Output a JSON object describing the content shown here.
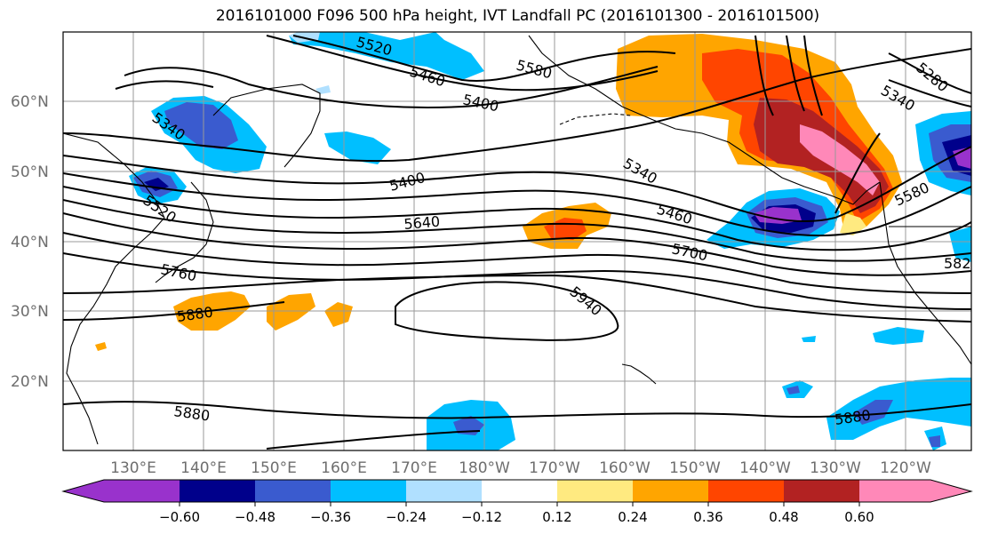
{
  "title": "2016101000 F096 500 hPa height, IVT Landfall PC (2016101300 - 2016101500)",
  "lat_labels": [
    "60°N",
    "50°N",
    "40°N",
    "30°N",
    "20°N"
  ],
  "lon_labels": [
    "130°E",
    "140°E",
    "150°E",
    "160°E",
    "170°E",
    "180°W",
    "170°W",
    "160°W",
    "150°W",
    "140°W",
    "130°W",
    "120°W"
  ],
  "contour_labels": {
    "c5520_top": "5520",
    "c5580_top": "5580",
    "c5460_top": "5460",
    "c5400_top": "5400",
    "c5280_right": "5280",
    "c5340_right": "5340",
    "c5340_left": "5340",
    "c5520_left": "5520",
    "c5400_mid": "5400",
    "c5340_mid": "5340",
    "c5640": "5640",
    "c5460_mid": "5460",
    "c5700": "5700",
    "c5580_right": "5580",
    "c5760": "5760",
    "c5880_left": "5880",
    "c5940": "5940",
    "c5820_right": "582",
    "c5880_bottom": "5880",
    "c5880_bottom_right": "5880"
  },
  "colorbar": {
    "ticks": [
      "−0.60",
      "−0.48",
      "−0.36",
      "−0.24",
      "−0.12",
      "0.12",
      "0.24",
      "0.36",
      "0.48",
      "0.60"
    ],
    "colors": [
      "#9932cc",
      "#00008b",
      "#3a5bcf",
      "#00bfff",
      "#b0e0ff",
      "#ffffff",
      "#ffea80",
      "#ffa500",
      "#ff4500",
      "#b22222",
      "#ff88b8"
    ]
  },
  "fill_colors": {
    "purple": "#9932cc",
    "navy": "#00008b",
    "blue": "#3a5bcf",
    "sky": "#00bfff",
    "pale": "#b0e0ff",
    "yellow": "#ffea80",
    "orange": "#ffa500",
    "red": "#ff4500",
    "darkred": "#b22222",
    "pink": "#ff88b8"
  }
}
